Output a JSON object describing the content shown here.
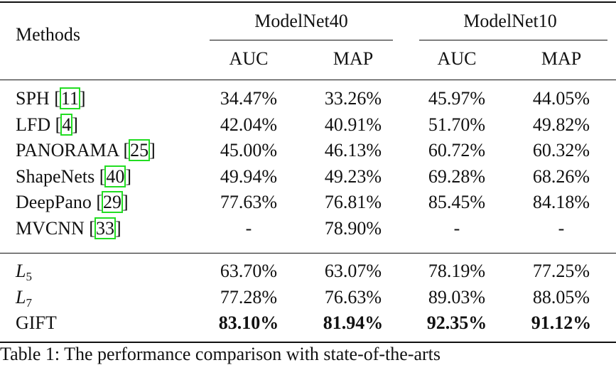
{
  "table": {
    "header": {
      "methods": "Methods",
      "groups": [
        "ModelNet40",
        "ModelNet10"
      ],
      "metrics": [
        "AUC",
        "MAP",
        "AUC",
        "MAP"
      ]
    },
    "rows": [
      {
        "method": [
          "SPH [",
          "11",
          "]"
        ],
        "cells": [
          "34.47%",
          "33.26%",
          "45.97%",
          "44.05%"
        ]
      },
      {
        "method": [
          "LFD [",
          "4",
          "]"
        ],
        "cells": [
          "42.04%",
          "40.91%",
          "51.70%",
          "49.82%"
        ]
      },
      {
        "method": [
          "PANORAMA [",
          "25",
          "]"
        ],
        "cells": [
          "45.00%",
          "46.13%",
          "60.72%",
          "60.32%"
        ]
      },
      {
        "method": [
          "ShapeNets [",
          "40",
          "]"
        ],
        "cells": [
          "49.94%",
          "49.23%",
          "69.28%",
          "68.26%"
        ]
      },
      {
        "method": [
          "DeepPano [",
          "29",
          "]"
        ],
        "cells": [
          "77.63%",
          "76.81%",
          "85.45%",
          "84.18%"
        ]
      },
      {
        "method": [
          "MVCNN [",
          "33",
          "]"
        ],
        "cells": [
          "-",
          "78.90%",
          "-",
          "-"
        ]
      }
    ],
    "ours": [
      {
        "base": "L",
        "sub": "5",
        "cells": [
          "63.70%",
          "63.07%",
          "78.19%",
          "77.25%"
        ]
      },
      {
        "base": "L",
        "sub": "7",
        "cells": [
          "77.28%",
          "76.63%",
          "89.03%",
          "88.05%"
        ]
      },
      {
        "name": "GIFT",
        "cells": [
          "83.10%",
          "81.94%",
          "92.35%",
          "91.12%"
        ],
        "bold": true
      }
    ],
    "caption": "Table 1: The performance comparison with state-of-the-arts"
  }
}
